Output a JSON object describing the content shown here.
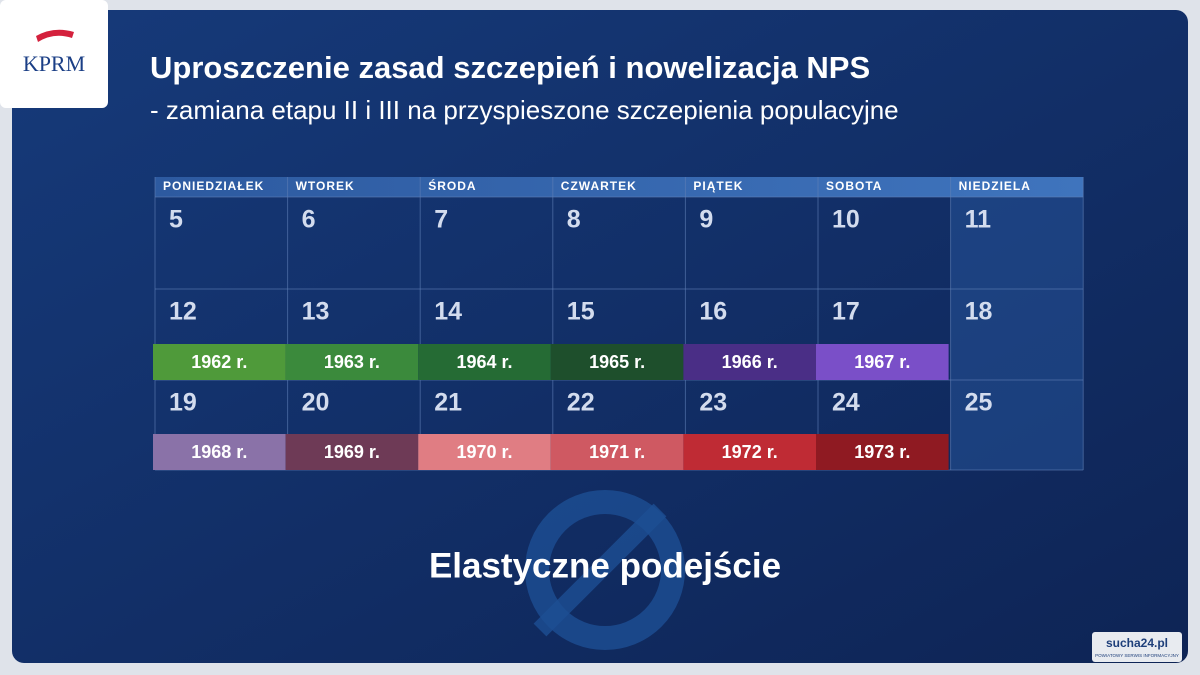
{
  "logo": "KPRM",
  "header": {
    "title": "Uproszczenie zasad szczepień i nowelizacja NPS",
    "subtitle": "- zamiana etapu II i III na przyspieszone szczepienia populacyjne"
  },
  "calendar": {
    "weekdays": [
      "PONIEDZIAŁEK",
      "WTOREK",
      "ŚRODA",
      "CZWARTEK",
      "PIĄTEK",
      "SOBOTA",
      "NIEDZIELA"
    ],
    "weeks": [
      {
        "days": [
          5,
          6,
          7,
          8,
          9,
          10,
          11
        ]
      },
      {
        "days": [
          12,
          13,
          14,
          15,
          16,
          17,
          18
        ],
        "years": [
          "1962 r.",
          "1963 r.",
          "1964 r.",
          "1965 r.",
          "1966 r.",
          "1967 r."
        ]
      },
      {
        "days": [
          19,
          20,
          21,
          22,
          23,
          24,
          25
        ],
        "years": [
          "1968 r.",
          "1969 r.",
          "1970 r.",
          "1971 r.",
          "1972 r.",
          "1973 r."
        ]
      }
    ]
  },
  "footer": "Elastyczne podejście",
  "watermark": {
    "name": "sucha24.pl",
    "tagline": "POWIATOWY SERWIS INFORMACYJNY"
  }
}
